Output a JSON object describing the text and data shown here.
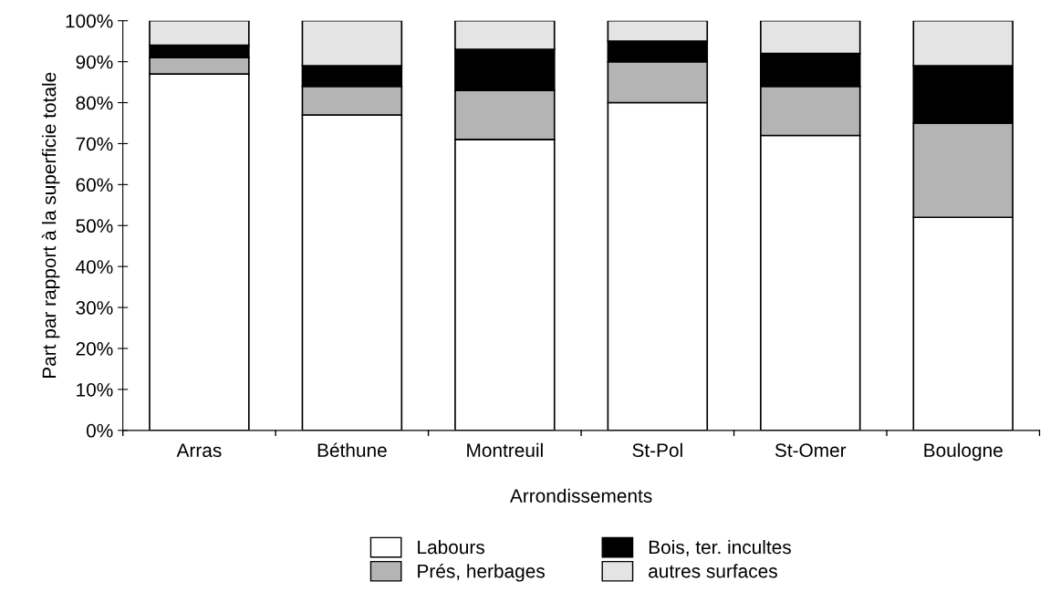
{
  "chart_data": {
    "type": "bar",
    "stacked": true,
    "xlabel": "Arrondissements",
    "ylabel": "Part par rapport à la superficie totale",
    "categories": [
      "Arras",
      "Béthune",
      "Montreuil",
      "St-Pol",
      "St-Omer",
      "Boulogne"
    ],
    "series": [
      {
        "name": "Labours",
        "color": "#ffffff",
        "values": [
          87,
          77,
          71,
          80,
          72,
          52
        ]
      },
      {
        "name": "Prés, herbages",
        "color": "#b4b4b4",
        "values": [
          4,
          7,
          12,
          10,
          12,
          23
        ]
      },
      {
        "name": "Bois, ter. incultes",
        "color": "#000000",
        "values": [
          3,
          5,
          10,
          5,
          8,
          14
        ]
      },
      {
        "name": "autres surfaces",
        "color": "#e4e4e4",
        "values": [
          6,
          11,
          7,
          5,
          8,
          11
        ]
      }
    ],
    "ylim": [
      0,
      100
    ],
    "yticks": [
      {
        "value": 0,
        "label": "0%"
      },
      {
        "value": 10,
        "label": "10%"
      },
      {
        "value": 20,
        "label": "20%"
      },
      {
        "value": 30,
        "label": "30%"
      },
      {
        "value": 40,
        "label": "40%"
      },
      {
        "value": 50,
        "label": "50%"
      },
      {
        "value": 60,
        "label": "60%"
      },
      {
        "value": 70,
        "label": "70%"
      },
      {
        "value": 80,
        "label": "80%"
      },
      {
        "value": 90,
        "label": "90%"
      },
      {
        "value": 100,
        "label": "100%"
      }
    ],
    "grid": false,
    "legend": "bottom"
  }
}
